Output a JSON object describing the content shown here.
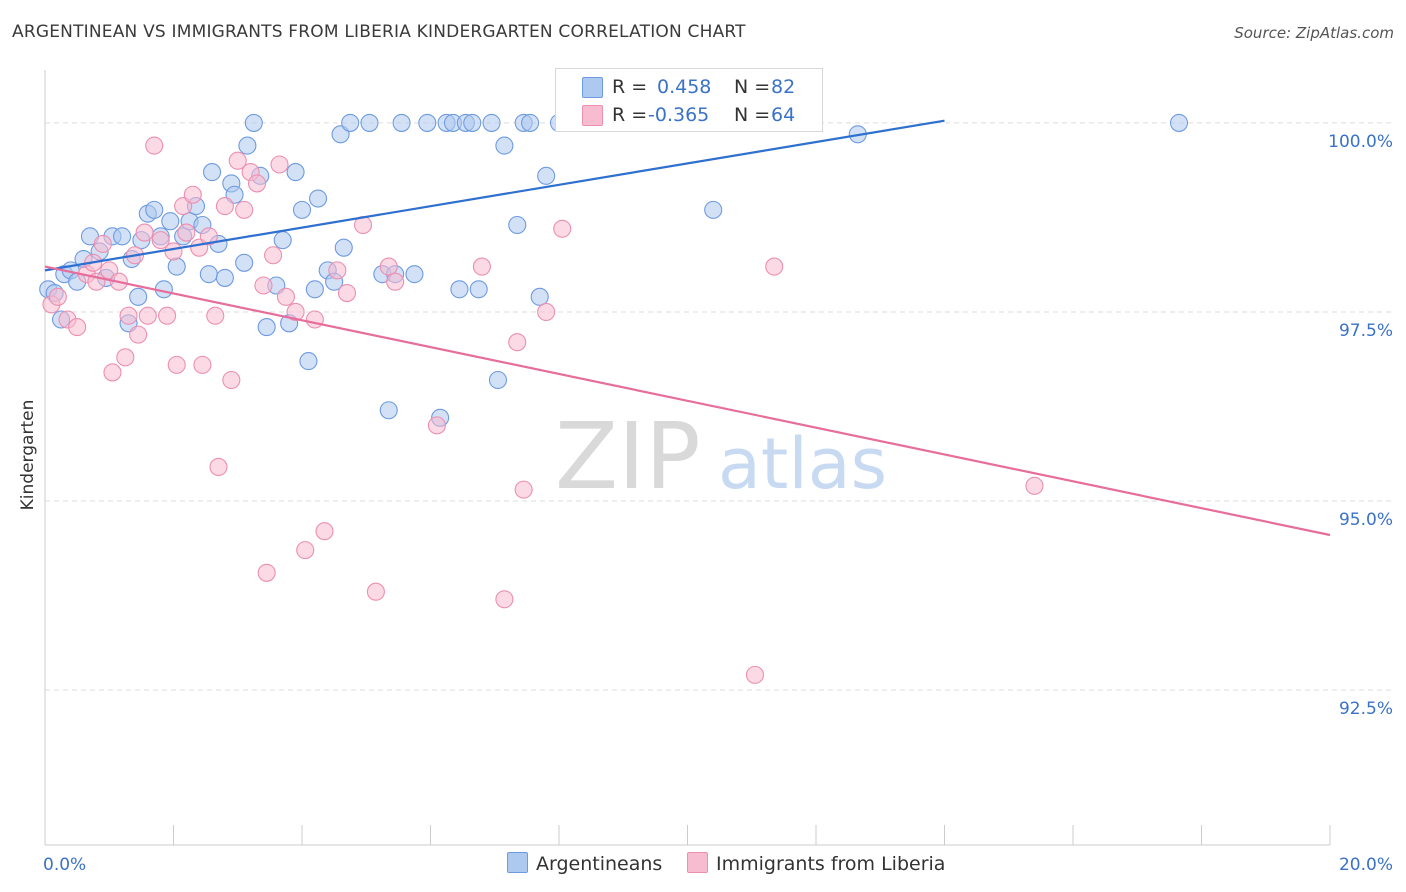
{
  "title": "ARGENTINEAN VS IMMIGRANTS FROM LIBERIA KINDERGARTEN CORRELATION CHART",
  "source": "Source: ZipAtlas.com",
  "watermark": {
    "zip": "ZIP",
    "atlas": "atlas"
  },
  "legend": {
    "blue": {
      "r_label": "R =",
      "r_value": "0.458",
      "n_label": "N =",
      "n_value": "82"
    },
    "pink": {
      "r_label": "R =",
      "r_value": "-0.365",
      "n_label": "N =",
      "n_value": "64"
    }
  },
  "bottom_legend": {
    "blue": "Argentineans",
    "pink": "Immigrants from Liberia"
  },
  "colors": {
    "blue_fill": "#aec9f0",
    "blue_stroke": "#6e9be0",
    "blue_line": "#2e6fcf",
    "pink_fill": "#f7bcd0",
    "pink_stroke": "#ec8fb0",
    "pink_line": "#e76d9a",
    "axis_text": "#3a72c8",
    "grid": "#dddddd"
  },
  "chart_data": {
    "type": "scatter",
    "title": "ARGENTINEAN VS IMMIGRANTS FROM LIBERIA KINDERGARTEN CORRELATION CHART",
    "xlabel": "",
    "ylabel": "Kindergarten",
    "xlim": [
      0,
      20
    ],
    "ylim": [
      90.45,
      100.7
    ],
    "x_tick_labels": [
      {
        "value": 0,
        "label": "0.0%"
      },
      {
        "value": 20,
        "label": "20.0%"
      }
    ],
    "y_ticks": [
      {
        "value": 100,
        "label": "100.0%"
      },
      {
        "value": 97.5,
        "label": "97.5%"
      },
      {
        "value": 95,
        "label": "95.0%"
      },
      {
        "value": 92.5,
        "label": "92.5%"
      }
    ],
    "x_minor_ticks": [
      0,
      2,
      4,
      6,
      8,
      10,
      12,
      14,
      16,
      18,
      20
    ],
    "series": [
      {
        "name": "Argentineans",
        "color": "blue",
        "trend": {
          "x": [
            0,
            14
          ],
          "y": [
            98.05,
            100.03
          ]
        },
        "points": [
          [
            0.05,
            97.8
          ],
          [
            0.15,
            97.75
          ],
          [
            0.25,
            97.4
          ],
          [
            0.3,
            98.0
          ],
          [
            0.4,
            98.05
          ],
          [
            0.5,
            97.9
          ],
          [
            0.6,
            98.2
          ],
          [
            0.7,
            98.5
          ],
          [
            0.85,
            98.3
          ],
          [
            0.95,
            97.95
          ],
          [
            1.05,
            98.5
          ],
          [
            1.2,
            98.5
          ],
          [
            1.3,
            97.35
          ],
          [
            1.35,
            98.2
          ],
          [
            1.45,
            97.7
          ],
          [
            1.5,
            98.45
          ],
          [
            1.6,
            98.8
          ],
          [
            1.7,
            98.85
          ],
          [
            1.8,
            98.5
          ],
          [
            1.85,
            97.8
          ],
          [
            1.95,
            98.7
          ],
          [
            2.05,
            98.1
          ],
          [
            2.15,
            98.5
          ],
          [
            2.25,
            98.7
          ],
          [
            2.35,
            98.9
          ],
          [
            2.45,
            98.65
          ],
          [
            2.55,
            98.0
          ],
          [
            2.6,
            99.35
          ],
          [
            2.7,
            98.4
          ],
          [
            2.8,
            97.95
          ],
          [
            2.9,
            99.2
          ],
          [
            2.95,
            99.05
          ],
          [
            3.1,
            98.15
          ],
          [
            3.15,
            99.7
          ],
          [
            3.25,
            100.0
          ],
          [
            3.35,
            99.3
          ],
          [
            3.45,
            97.3
          ],
          [
            3.6,
            97.85
          ],
          [
            3.7,
            98.45
          ],
          [
            3.8,
            97.35
          ],
          [
            3.9,
            99.35
          ],
          [
            4.0,
            98.85
          ],
          [
            4.1,
            96.85
          ],
          [
            4.2,
            97.8
          ],
          [
            4.25,
            99.0
          ],
          [
            4.4,
            98.05
          ],
          [
            4.5,
            97.9
          ],
          [
            4.6,
            99.85
          ],
          [
            4.65,
            98.35
          ],
          [
            4.75,
            100.0
          ],
          [
            5.05,
            100.0
          ],
          [
            5.25,
            98.0
          ],
          [
            5.35,
            96.2
          ],
          [
            5.45,
            98.0
          ],
          [
            5.55,
            100.0
          ],
          [
            5.75,
            98.0
          ],
          [
            5.95,
            100.0
          ],
          [
            6.15,
            96.1
          ],
          [
            6.25,
            100.0
          ],
          [
            6.35,
            100.0
          ],
          [
            6.45,
            97.8
          ],
          [
            6.55,
            100.0
          ],
          [
            6.65,
            100.0
          ],
          [
            6.75,
            97.8
          ],
          [
            6.95,
            100.0
          ],
          [
            7.05,
            96.6
          ],
          [
            7.15,
            99.7
          ],
          [
            7.35,
            98.65
          ],
          [
            7.45,
            100.0
          ],
          [
            7.55,
            100.0
          ],
          [
            7.7,
            97.7
          ],
          [
            7.8,
            99.3
          ],
          [
            8.0,
            100.0
          ],
          [
            8.3,
            100.0
          ],
          [
            8.6,
            100.0
          ],
          [
            8.9,
            100.0
          ],
          [
            9.2,
            100.0
          ],
          [
            10.4,
            98.85
          ],
          [
            10.7,
            100.0
          ],
          [
            11.5,
            100.0
          ],
          [
            12.65,
            99.85
          ],
          [
            17.65,
            100.0
          ]
        ]
      },
      {
        "name": "Immigrants from Liberia",
        "color": "pink",
        "trend": {
          "x": [
            0,
            20
          ],
          "y": [
            98.1,
            94.55
          ]
        },
        "points": [
          [
            0.1,
            97.6
          ],
          [
            0.2,
            97.7
          ],
          [
            0.35,
            97.4
          ],
          [
            0.5,
            97.3
          ],
          [
            0.65,
            98.0
          ],
          [
            0.75,
            98.15
          ],
          [
            0.8,
            97.9
          ],
          [
            0.9,
            98.4
          ],
          [
            1.0,
            98.05
          ],
          [
            1.05,
            96.7
          ],
          [
            1.15,
            97.9
          ],
          [
            1.25,
            96.9
          ],
          [
            1.3,
            97.45
          ],
          [
            1.4,
            98.25
          ],
          [
            1.45,
            97.2
          ],
          [
            1.55,
            98.55
          ],
          [
            1.6,
            97.45
          ],
          [
            1.7,
            99.7
          ],
          [
            1.8,
            98.45
          ],
          [
            1.9,
            97.45
          ],
          [
            2.0,
            98.3
          ],
          [
            2.05,
            96.8
          ],
          [
            2.15,
            98.9
          ],
          [
            2.2,
            98.55
          ],
          [
            2.3,
            99.05
          ],
          [
            2.4,
            98.35
          ],
          [
            2.45,
            96.8
          ],
          [
            2.55,
            98.5
          ],
          [
            2.65,
            97.45
          ],
          [
            2.7,
            95.45
          ],
          [
            2.8,
            98.9
          ],
          [
            2.9,
            96.6
          ],
          [
            3.0,
            99.5
          ],
          [
            3.1,
            98.85
          ],
          [
            3.2,
            99.35
          ],
          [
            3.3,
            99.2
          ],
          [
            3.4,
            97.85
          ],
          [
            3.45,
            94.05
          ],
          [
            3.55,
            98.25
          ],
          [
            3.65,
            99.45
          ],
          [
            3.75,
            97.7
          ],
          [
            3.9,
            97.5
          ],
          [
            4.05,
            94.35
          ],
          [
            4.2,
            97.4
          ],
          [
            4.35,
            94.6
          ],
          [
            4.55,
            98.05
          ],
          [
            4.7,
            97.75
          ],
          [
            4.95,
            98.65
          ],
          [
            5.15,
            93.8
          ],
          [
            5.35,
            98.1
          ],
          [
            5.45,
            97.9
          ],
          [
            6.1,
            96.0
          ],
          [
            6.8,
            98.1
          ],
          [
            7.15,
            93.7
          ],
          [
            7.35,
            97.1
          ],
          [
            7.45,
            95.15
          ],
          [
            7.8,
            97.5
          ],
          [
            8.05,
            98.6
          ],
          [
            8.8,
            100.0
          ],
          [
            9.2,
            100.0
          ],
          [
            9.6,
            100.0
          ],
          [
            11.05,
            92.7
          ],
          [
            11.35,
            98.1
          ],
          [
            15.4,
            95.2
          ]
        ]
      }
    ]
  }
}
